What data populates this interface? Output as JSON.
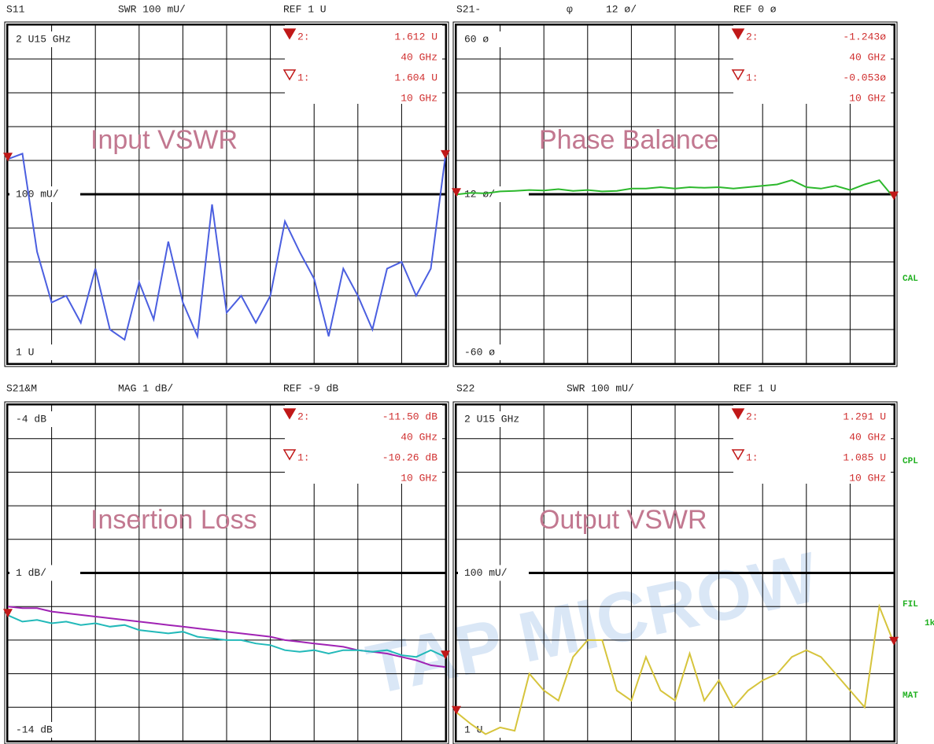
{
  "chart_data": [
    {
      "type": "line",
      "header": [
        "S11",
        "SWR 100 mU/",
        "REF 1 U"
      ],
      "title": "Input VSWR",
      "top_label": "2 U15 GHz",
      "ref_label": "100 mU/",
      "bottom_label": "1 U",
      "markers": [
        {
          "label": "2:",
          "value": "1.612 U",
          "freq": "40 GHz"
        },
        {
          "label": "1:",
          "value": "1.604 U",
          "freq": "10 GHz"
        }
      ],
      "x": [
        10,
        11,
        12,
        13,
        14,
        15,
        16,
        17,
        18,
        19,
        20,
        21,
        22,
        23,
        24,
        25,
        26,
        27,
        28,
        29,
        30,
        31,
        32,
        33,
        34,
        35,
        36,
        37,
        38,
        39,
        40
      ],
      "xlim": [
        10,
        40
      ],
      "xticks": [
        10,
        13,
        16,
        19,
        22,
        25,
        28,
        31,
        34,
        37,
        40
      ],
      "ylim": [
        1,
        2
      ],
      "yticks": [
        1,
        1.1,
        1.2,
        1.3,
        1.4,
        1.5,
        1.6,
        1.7,
        1.8,
        1.9,
        2
      ],
      "series": [
        {
          "color": "#4b5fe0",
          "values": [
            1.604,
            1.62,
            1.33,
            1.18,
            1.2,
            1.12,
            1.28,
            1.1,
            1.07,
            1.24,
            1.13,
            1.36,
            1.18,
            1.08,
            1.47,
            1.15,
            1.2,
            1.12,
            1.2,
            1.42,
            1.33,
            1.25,
            1.08,
            1.28,
            1.2,
            1.1,
            1.28,
            1.3,
            1.2,
            1.28,
            1.612
          ]
        }
      ]
    },
    {
      "type": "line",
      "header": [
        "S21-",
        "φ",
        "12 ø/",
        "REF 0 ø"
      ],
      "title": "Phase Balance",
      "top_label": "60 ø",
      "ref_label": "12 ø/",
      "bottom_label": "-60 ø",
      "markers": [
        {
          "label": "2:",
          "value": "-1.243ø",
          "freq": "40 GHz"
        },
        {
          "label": "1:",
          "value": "-0.053ø",
          "freq": "10 GHz"
        }
      ],
      "x": [
        10,
        11,
        12,
        13,
        14,
        15,
        16,
        17,
        18,
        19,
        20,
        21,
        22,
        23,
        24,
        25,
        26,
        27,
        28,
        29,
        30,
        31,
        32,
        33,
        34,
        35,
        36,
        37,
        38,
        39,
        40
      ],
      "xlim": [
        10,
        40
      ],
      "xticks": [
        10,
        13,
        16,
        19,
        22,
        25,
        28,
        31,
        34,
        37,
        40
      ],
      "ylim": [
        -60,
        60
      ],
      "yticks": [
        -60,
        -48,
        -36,
        -24,
        -12,
        0,
        12,
        24,
        36,
        48,
        60
      ],
      "series": [
        {
          "color": "#2cb82c",
          "values": [
            -0.053,
            0.5,
            0.3,
            1.0,
            1.2,
            1.5,
            1.3,
            1.8,
            1.2,
            1.5,
            1.0,
            1.2,
            2.0,
            2.0,
            2.5,
            2.0,
            2.5,
            2.3,
            2.5,
            2.0,
            2.5,
            3.0,
            3.5,
            5.0,
            2.5,
            2.0,
            3.0,
            1.5,
            3.5,
            5.0,
            -1.243
          ]
        }
      ]
    },
    {
      "type": "line",
      "header": [
        "S21&M",
        "MAG 1 dB/",
        "REF -9 dB"
      ],
      "title": "Insertion Loss",
      "top_label": "-4 dB",
      "ref_label": "1 dB/",
      "bottom_label": "-14 dB",
      "markers": [
        {
          "label": "2:",
          "value": "-11.50 dB",
          "freq": "40 GHz"
        },
        {
          "label": "1:",
          "value": "-10.26 dB",
          "freq": "10 GHz"
        }
      ],
      "x": [
        10,
        11,
        12,
        13,
        14,
        15,
        16,
        17,
        18,
        19,
        20,
        21,
        22,
        23,
        24,
        25,
        26,
        27,
        28,
        29,
        30,
        31,
        32,
        33,
        34,
        35,
        36,
        37,
        38,
        39,
        40
      ],
      "xlim": [
        10,
        40
      ],
      "xticks": [
        10,
        13,
        16,
        19,
        22,
        25,
        28,
        31,
        34,
        37,
        40
      ],
      "ylim": [
        -14,
        -4
      ],
      "yticks": [
        -14,
        -13,
        -12,
        -11,
        -10,
        -9,
        -8,
        -7,
        -6,
        -5,
        -4
      ],
      "series": [
        {
          "color": "#a023b4",
          "values": [
            -10.0,
            -10.05,
            -10.05,
            -10.15,
            -10.2,
            -10.25,
            -10.3,
            -10.35,
            -10.4,
            -10.45,
            -10.5,
            -10.55,
            -10.6,
            -10.65,
            -10.7,
            -10.75,
            -10.8,
            -10.85,
            -10.9,
            -11.0,
            -11.05,
            -11.1,
            -11.15,
            -11.2,
            -11.3,
            -11.35,
            -11.4,
            -11.5,
            -11.6,
            -11.75,
            -11.8
          ]
        },
        {
          "color": "#22b9b9",
          "values": [
            -10.26,
            -10.45,
            -10.4,
            -10.5,
            -10.45,
            -10.55,
            -10.5,
            -10.6,
            -10.55,
            -10.7,
            -10.75,
            -10.8,
            -10.75,
            -10.9,
            -10.95,
            -11.0,
            -11.0,
            -11.1,
            -11.15,
            -11.3,
            -11.35,
            -11.3,
            -11.4,
            -11.3,
            -11.3,
            -11.35,
            -11.3,
            -11.45,
            -11.5,
            -11.3,
            -11.5
          ]
        }
      ]
    },
    {
      "type": "line",
      "header": [
        "S22",
        "SWR 100 mU/",
        "REF 1 U"
      ],
      "title": "Output VSWR",
      "top_label": "2 U15 GHz",
      "ref_label": "100 mU/",
      "bottom_label": "1 U",
      "markers": [
        {
          "label": "2:",
          "value": "1.291 U",
          "freq": "40 GHz"
        },
        {
          "label": "1:",
          "value": "1.085 U",
          "freq": "10 GHz"
        }
      ],
      "x": [
        10,
        11,
        12,
        13,
        14,
        15,
        16,
        17,
        18,
        19,
        20,
        21,
        22,
        23,
        24,
        25,
        26,
        27,
        28,
        29,
        30,
        31,
        32,
        33,
        34,
        35,
        36,
        37,
        38,
        39,
        40
      ],
      "xlim": [
        10,
        40
      ],
      "xticks": [
        10,
        13,
        16,
        19,
        22,
        25,
        28,
        31,
        34,
        37,
        40
      ],
      "ylim": [
        1,
        2
      ],
      "yticks": [
        1,
        1.1,
        1.2,
        1.3,
        1.4,
        1.5,
        1.6,
        1.7,
        1.8,
        1.9,
        2
      ],
      "series": [
        {
          "color": "#d6c43c",
          "values": [
            1.085,
            1.05,
            1.02,
            1.04,
            1.03,
            1.2,
            1.15,
            1.12,
            1.25,
            1.3,
            1.3,
            1.15,
            1.12,
            1.25,
            1.15,
            1.12,
            1.26,
            1.12,
            1.18,
            1.1,
            1.15,
            1.18,
            1.2,
            1.25,
            1.27,
            1.25,
            1.2,
            1.15,
            1.1,
            1.4,
            1.291
          ]
        }
      ]
    }
  ],
  "side_labels": [
    "CAL",
    "CPL",
    "FIL",
    "1k",
    "MAT"
  ],
  "watermark": "TAP MICROW"
}
